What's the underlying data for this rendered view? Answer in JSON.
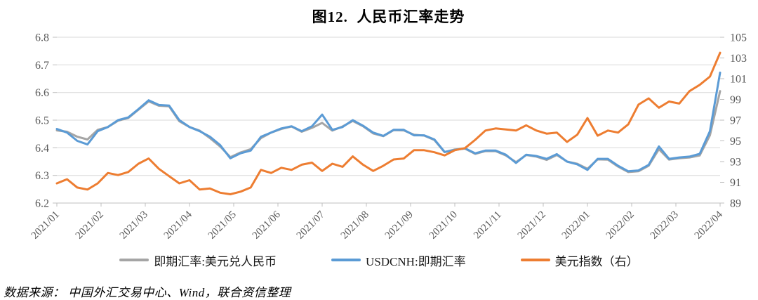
{
  "title": "图12.  人民币汇率走势",
  "source_note": "数据来源： 中国外汇交易中心、Wind，联合资信整理",
  "chart_data": {
    "type": "line",
    "title": "图12. 人民币汇率走势",
    "grid": "horizontal",
    "legend_position": "bottom",
    "x_tick_labels": [
      "2021/01",
      "2021/02",
      "2021/03",
      "2021/04",
      "2021/05",
      "2021/06",
      "2021/07",
      "2021/08",
      "2021/09",
      "2021/10",
      "2021/11",
      "2021/12",
      "2022/01",
      "2022/02",
      "2022/03",
      "2022/04"
    ],
    "left_axis": {
      "min": 6.2,
      "max": 6.8,
      "step": 0.1,
      "ticks": [
        "6.8",
        "6.7",
        "6.6",
        "6.5",
        "6.4",
        "6.3",
        "6.2"
      ]
    },
    "right_axis": {
      "min": 89,
      "max": 105,
      "step": 2,
      "ticks": [
        "105",
        "103",
        "101",
        "99",
        "97",
        "95",
        "93",
        "91",
        "89"
      ]
    },
    "dates": [
      "2021-01-29",
      "2021-02-05",
      "2021-02-12",
      "2021-02-19",
      "2021-02-26",
      "2021-03-05",
      "2021-03-12",
      "2021-03-19",
      "2021-03-26",
      "2021-04-02",
      "2021-04-09",
      "2021-04-16",
      "2021-04-23",
      "2021-04-30",
      "2021-05-07",
      "2021-05-14",
      "2021-05-21",
      "2021-05-28",
      "2021-06-04",
      "2021-06-11",
      "2021-06-18",
      "2021-06-25",
      "2021-07-02",
      "2021-07-09",
      "2021-07-16",
      "2021-07-23",
      "2021-07-30",
      "2021-08-06",
      "2021-08-13",
      "2021-08-20",
      "2021-08-27",
      "2021-09-03",
      "2021-09-10",
      "2021-09-17",
      "2021-09-24",
      "2021-10-01",
      "2021-10-08",
      "2021-10-15",
      "2021-10-22",
      "2021-10-29",
      "2021-11-05",
      "2021-11-12",
      "2021-11-19",
      "2021-11-26",
      "2021-12-03",
      "2021-12-10",
      "2021-12-17",
      "2021-12-24",
      "2021-12-31",
      "2022-01-07",
      "2022-01-14",
      "2022-01-21",
      "2022-01-28",
      "2022-02-04",
      "2022-02-11",
      "2022-02-18",
      "2022-02-25",
      "2022-03-04",
      "2022-03-11",
      "2022-03-18",
      "2022-03-25",
      "2022-04-01",
      "2022-04-08",
      "2022-04-15",
      "2022-04-22",
      "2022-04-29"
    ],
    "series": [
      {
        "id": "cny-spot",
        "name": "即期汇率:美元兑人民币",
        "axis": "left",
        "color": "#A5A5A5",
        "values": [
          6.463,
          6.458,
          6.44,
          6.43,
          6.465,
          6.475,
          6.498,
          6.508,
          6.538,
          6.568,
          6.552,
          6.55,
          6.496,
          6.475,
          6.462,
          6.435,
          6.405,
          6.366,
          6.383,
          6.395,
          6.435,
          6.455,
          6.468,
          6.477,
          6.458,
          6.472,
          6.49,
          6.462,
          6.477,
          6.497,
          6.478,
          6.452,
          6.442,
          6.464,
          6.463,
          6.447,
          6.444,
          6.428,
          6.384,
          6.394,
          6.397,
          6.378,
          6.388,
          6.388,
          6.372,
          6.348,
          6.374,
          6.368,
          6.356,
          6.374,
          6.35,
          6.342,
          6.324,
          6.358,
          6.357,
          6.332,
          6.312,
          6.315,
          6.335,
          6.395,
          6.357,
          6.362,
          6.365,
          6.372,
          6.445,
          6.605
        ]
      },
      {
        "id": "usdcnh",
        "name": "USDCNH:即期汇率",
        "axis": "left",
        "color": "#5B9BD5",
        "values": [
          6.468,
          6.455,
          6.425,
          6.412,
          6.46,
          6.475,
          6.5,
          6.51,
          6.54,
          6.572,
          6.555,
          6.553,
          6.5,
          6.475,
          6.46,
          6.44,
          6.41,
          6.362,
          6.38,
          6.39,
          6.44,
          6.455,
          6.47,
          6.478,
          6.46,
          6.478,
          6.52,
          6.465,
          6.475,
          6.5,
          6.48,
          6.455,
          6.443,
          6.465,
          6.465,
          6.445,
          6.445,
          6.43,
          6.385,
          6.392,
          6.398,
          6.38,
          6.39,
          6.39,
          6.375,
          6.345,
          6.375,
          6.37,
          6.36,
          6.377,
          6.35,
          6.34,
          6.32,
          6.36,
          6.36,
          6.335,
          6.315,
          6.318,
          6.338,
          6.405,
          6.36,
          6.365,
          6.368,
          6.378,
          6.46,
          6.672
        ]
      },
      {
        "id": "dxy",
        "name": "美元指数（右）",
        "axis": "right",
        "color": "#ED7D31",
        "values": [
          90.9,
          91.3,
          90.5,
          90.3,
          90.9,
          91.9,
          91.7,
          92.0,
          92.8,
          93.3,
          92.3,
          91.6,
          90.9,
          91.2,
          90.3,
          90.4,
          90.0,
          89.85,
          90.1,
          90.5,
          92.2,
          91.9,
          92.4,
          92.2,
          92.7,
          92.9,
          92.1,
          92.8,
          92.5,
          93.5,
          92.7,
          92.1,
          92.6,
          93.2,
          93.3,
          94.1,
          94.1,
          93.9,
          93.6,
          94.1,
          94.3,
          95.1,
          96.0,
          96.2,
          96.1,
          96.0,
          96.5,
          96.0,
          95.7,
          95.8,
          94.9,
          95.6,
          97.2,
          95.5,
          96.0,
          95.8,
          96.6,
          98.5,
          99.1,
          98.2,
          98.8,
          98.6,
          99.8,
          100.4,
          101.2,
          103.5
        ]
      }
    ]
  }
}
